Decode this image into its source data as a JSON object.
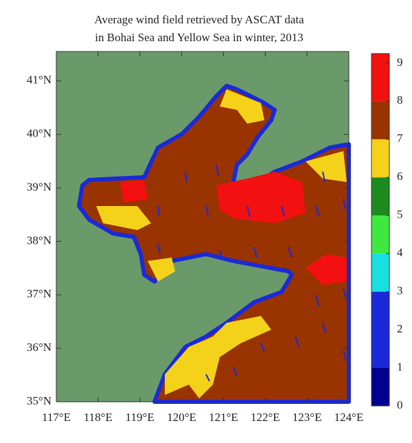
{
  "chart_data": {
    "type": "filled-contour-map",
    "title": [
      "Average wind field retrieved by ASCAT data",
      "in Bohai Sea and Yellow Sea in winter, 2013"
    ],
    "xlim": [
      117,
      124
    ],
    "xticks": [
      {
        "value": 117,
        "label": "117°E"
      },
      {
        "value": 118,
        "label": "118°E"
      },
      {
        "value": 119,
        "label": "119°E"
      },
      {
        "value": 120,
        "label": "120°E"
      },
      {
        "value": 121,
        "label": "121°E"
      },
      {
        "value": 122,
        "label": "122°E"
      },
      {
        "value": 123,
        "label": "123°E"
      },
      {
        "value": 124,
        "label": "124°E"
      }
    ],
    "ylim": [
      35,
      41.55
    ],
    "yticks": [
      {
        "value": 35,
        "label": "35°N"
      },
      {
        "value": 36,
        "label": "36°N"
      },
      {
        "value": 37,
        "label": "37°N"
      },
      {
        "value": 38,
        "label": "38°N"
      },
      {
        "value": 39,
        "label": "39°N"
      },
      {
        "value": 40,
        "label": "40°N"
      },
      {
        "value": 41,
        "label": "41°N"
      }
    ],
    "colorbar": {
      "lim": [
        0,
        9.25
      ],
      "ticks": [
        0,
        1,
        2,
        3,
        4,
        5,
        6,
        7,
        8,
        9
      ],
      "levels": [
        0,
        1,
        3,
        4,
        5,
        6,
        7,
        8
      ],
      "colors": [
        "#00008f",
        "#1a2ad8",
        "#19e0e0",
        "#3ee83e",
        "#1d8a1d",
        "#f5d21a",
        "#993300",
        "#f21010"
      ]
    }
  }
}
